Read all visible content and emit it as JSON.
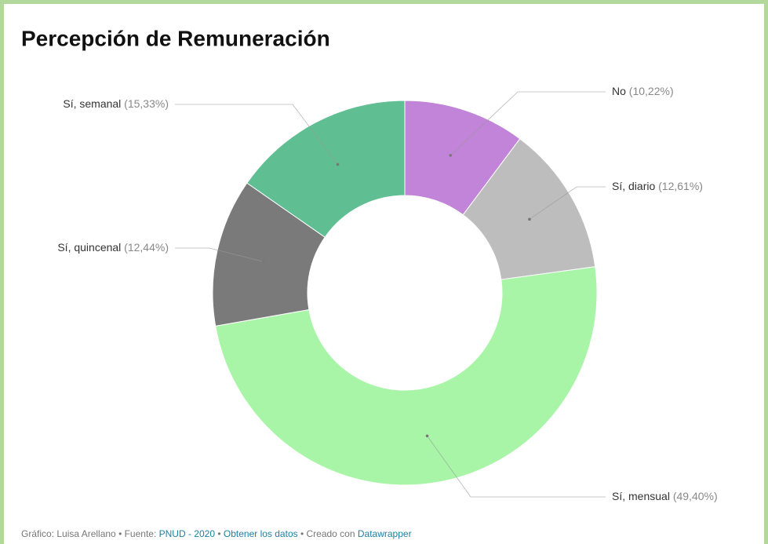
{
  "chart_data": {
    "type": "donut",
    "title": "Percepción de Remuneración",
    "categories": [
      "No",
      "Sí, diario",
      "Sí, mensual",
      "Sí, quincenal",
      "Sí, semanal"
    ],
    "values": [
      10.22,
      12.61,
      49.4,
      12.44,
      15.33
    ],
    "value_labels": [
      "(10,22%)",
      "(12,61%)",
      "(49,40%)",
      "(12,44%)",
      "(15,33%)"
    ],
    "colors": [
      "#c184d8",
      "#bdbdbd",
      "#a8f5a8",
      "#7a7a7a",
      "#5fbf93"
    ]
  },
  "footer": {
    "parts": [
      "Gráfico: Luisa Arellano • Fuente: ",
      "PNUD - 2020",
      " • ",
      "Obtener los datos",
      " • Creado con ",
      "Datawrapper"
    ]
  }
}
